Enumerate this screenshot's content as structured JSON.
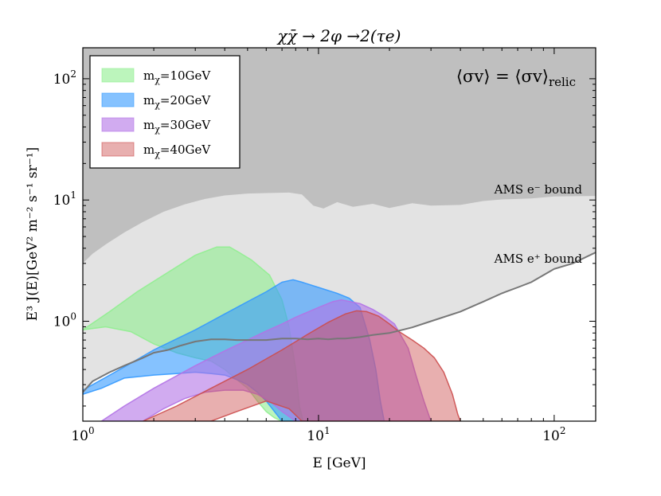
{
  "chart_data": {
    "type": "area",
    "title": "χχ̄ → 2φ →2(τe)",
    "xlabel": "E [GeV]",
    "ylabel": "E³ J(E)[GeV² m⁻² s⁻¹ sr⁻¹]",
    "xscale": "log",
    "yscale": "log",
    "xlim": [
      1,
      150
    ],
    "ylim": [
      0.15,
      180
    ],
    "x_ticks": [
      {
        "base": "10",
        "exp": "0",
        "value": 1
      },
      {
        "base": "10",
        "exp": "1",
        "value": 10
      },
      {
        "base": "10",
        "exp": "2",
        "value": 100
      }
    ],
    "y_ticks": [
      {
        "base": "10",
        "exp": "0",
        "value": 1
      },
      {
        "base": "10",
        "exp": "1",
        "value": 10
      },
      {
        "base": "10",
        "exp": "2",
        "value": 100
      }
    ],
    "annotation": "⟨σv⟩ = ⟨σv⟩",
    "annotation_sub": "relic",
    "legend_position": "top-left",
    "bounds": [
      {
        "name": "AMS e⁻ bound",
        "label": "AMS e⁻ bound",
        "color": "#bfbfbf",
        "x": [
          1,
          1.1,
          1.25,
          1.5,
          1.8,
          2.2,
          2.7,
          3.3,
          4.0,
          5.0,
          6.0,
          7.5,
          8.5,
          9.5,
          10.5,
          12,
          14,
          17,
          20,
          25,
          30,
          40,
          50,
          60,
          80,
          100,
          150
        ],
        "y": [
          3.0,
          3.6,
          4.3,
          5.4,
          6.6,
          8.0,
          9.2,
          10.2,
          10.9,
          11.3,
          11.4,
          11.5,
          11.1,
          9.0,
          8.5,
          9.6,
          8.8,
          9.3,
          8.6,
          9.4,
          9.0,
          9.1,
          9.8,
          10.1,
          10.3,
          10.7,
          10.8
        ]
      },
      {
        "name": "AMS e⁺ bound",
        "label": "AMS e⁺ bound",
        "color": "#e3e3e3",
        "line_color": "#777777",
        "x": [
          1,
          1.1,
          1.3,
          1.5,
          1.8,
          2.0,
          2.3,
          2.6,
          3.0,
          3.5,
          4.0,
          4.5,
          5.0,
          5.5,
          6.0,
          7.0,
          8.0,
          9.0,
          10.0,
          11.0,
          12.0,
          13.0,
          15.0,
          17.0,
          20.0,
          25.0,
          30.0,
          40.0,
          50.0,
          60.0,
          70.0,
          80.0,
          90.0,
          100.0,
          120.0,
          150.0
        ],
        "y": [
          0.26,
          0.32,
          0.38,
          0.43,
          0.5,
          0.55,
          0.58,
          0.63,
          0.68,
          0.71,
          0.71,
          0.7,
          0.7,
          0.7,
          0.7,
          0.72,
          0.72,
          0.71,
          0.72,
          0.71,
          0.72,
          0.72,
          0.74,
          0.77,
          0.8,
          0.89,
          1.0,
          1.2,
          1.45,
          1.7,
          1.9,
          2.1,
          2.4,
          2.7,
          3.0,
          3.7
        ]
      }
    ],
    "series": [
      {
        "name": "m_χ=10GeV",
        "label_main": "m",
        "label_sub": "χ",
        "label_rest": "=10GeV",
        "color": "#90ee90",
        "opacity": 0.6,
        "upper": {
          "x": [
            1,
            1.3,
            1.7,
            2.2,
            3.0,
            3.7,
            4.2,
            4.6,
            5.2,
            6.2,
            7.0,
            7.5,
            8.0,
            8.3,
            8.6
          ],
          "y": [
            0.85,
            1.2,
            1.75,
            2.4,
            3.5,
            4.1,
            4.1,
            3.7,
            3.2,
            2.4,
            1.5,
            0.9,
            0.4,
            0.2,
            0.15
          ]
        },
        "lower": {
          "x": [
            1,
            1.25,
            1.6,
            2.0,
            2.5,
            3.0,
            3.5,
            4.0,
            4.5,
            5.0,
            5.5,
            6.0,
            6.5,
            7.0
          ],
          "y": [
            0.85,
            0.9,
            0.82,
            0.65,
            0.55,
            0.5,
            0.47,
            0.4,
            0.33,
            0.28,
            0.22,
            0.18,
            0.16,
            0.15
          ]
        }
      },
      {
        "name": "m_χ=20GeV",
        "label_main": "m",
        "label_sub": "χ",
        "label_rest": "=20GeV",
        "color": "#3399ff",
        "opacity": 0.6,
        "upper": {
          "x": [
            1,
            1.5,
            2.0,
            3.0,
            4.0,
            5.0,
            6.0,
            7.0,
            7.8,
            8.5,
            10.0,
            12.0,
            13.5,
            15.0,
            16.5,
            17.5,
            18.3,
            19.0
          ],
          "y": [
            0.27,
            0.42,
            0.58,
            0.85,
            1.15,
            1.45,
            1.75,
            2.1,
            2.2,
            2.1,
            1.9,
            1.7,
            1.55,
            1.3,
            0.7,
            0.4,
            0.22,
            0.15
          ]
        },
        "lower": {
          "x": [
            1,
            1.2,
            1.5,
            2.0,
            2.5,
            3.0,
            3.5,
            4.0,
            4.5,
            5.0,
            5.5,
            6.0,
            7.0
          ],
          "y": [
            0.25,
            0.28,
            0.34,
            0.36,
            0.37,
            0.38,
            0.37,
            0.36,
            0.33,
            0.3,
            0.26,
            0.22,
            0.15
          ]
        }
      },
      {
        "name": "m_χ=30GeV",
        "label_main": "m",
        "label_sub": "χ",
        "label_rest": "=30GeV",
        "color": "#b373e6",
        "opacity": 0.6,
        "upper": {
          "x": [
            1.2,
            1.5,
            2.0,
            3.0,
            4.0,
            5.0,
            6.0,
            7.0,
            8.0,
            10.0,
            11.5,
            12.5,
            15.0,
            17.0,
            19.0,
            21.0,
            24.0,
            26.0,
            28.0,
            30.0
          ],
          "y": [
            0.15,
            0.2,
            0.28,
            0.43,
            0.57,
            0.7,
            0.83,
            0.95,
            1.08,
            1.3,
            1.45,
            1.5,
            1.4,
            1.25,
            1.1,
            0.95,
            0.6,
            0.35,
            0.22,
            0.15
          ]
        },
        "lower": {
          "x": [
            1.8,
            2.2,
            2.7,
            3.3,
            4.0,
            4.8,
            5.5,
            6.2,
            7.0,
            8.0
          ],
          "y": [
            0.15,
            0.19,
            0.23,
            0.26,
            0.27,
            0.27,
            0.25,
            0.22,
            0.18,
            0.15
          ]
        }
      },
      {
        "name": "m_χ=40GeV",
        "label_main": "m",
        "label_sub": "χ",
        "label_rest": "=40GeV",
        "color": "#cc4d4d",
        "opacity": 0.45,
        "upper": {
          "x": [
            1.8,
            2.5,
            3.5,
            5.0,
            7.0,
            9.0,
            11.0,
            13.0,
            14.5,
            16.0,
            18.0,
            20.0,
            22.0,
            25.0,
            28.0,
            31.0,
            34.0,
            37.0,
            39.0,
            40.0
          ],
          "y": [
            0.15,
            0.2,
            0.28,
            0.4,
            0.58,
            0.78,
            0.98,
            1.15,
            1.22,
            1.2,
            1.1,
            0.95,
            0.82,
            0.7,
            0.6,
            0.5,
            0.38,
            0.25,
            0.17,
            0.15
          ]
        },
        "lower": {
          "x": [
            3.5,
            4.5,
            6.0,
            7.5,
            8.5
          ],
          "y": [
            0.15,
            0.18,
            0.22,
            0.19,
            0.15
          ]
        }
      }
    ]
  }
}
